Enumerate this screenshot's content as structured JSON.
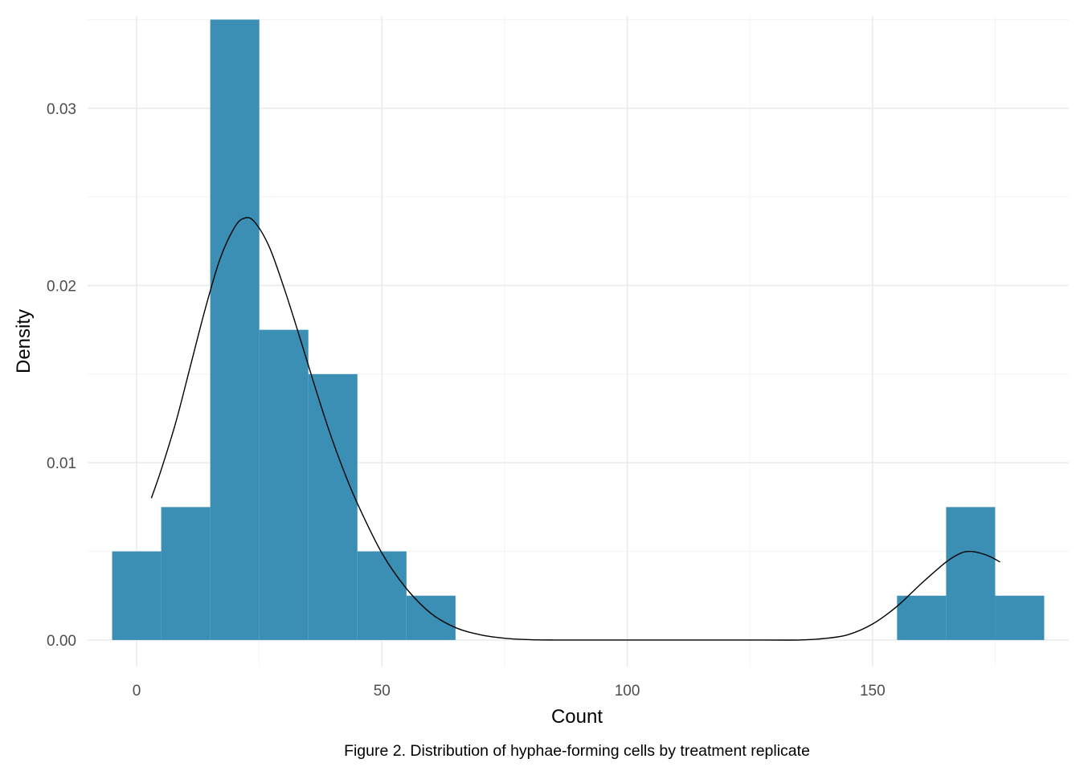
{
  "chart_data": {
    "type": "bar",
    "subtype": "histogram-with-density",
    "xlabel": "Count",
    "ylabel": "Density",
    "caption": "Figure 2. Distribution of hyphae-forming cells by treatment replicate",
    "xlim": [
      -10,
      190
    ],
    "ylim": [
      -0.0015,
      0.0352
    ],
    "x_ticks": [
      0,
      50,
      100,
      150
    ],
    "x_tick_labels": [
      "0",
      "50",
      "100",
      "150"
    ],
    "x_minor_ticks": [
      25,
      75,
      125,
      175
    ],
    "y_ticks": [
      0,
      0.01,
      0.02,
      0.03
    ],
    "y_tick_labels": [
      "0.00",
      "0.01",
      "0.02",
      "0.03"
    ],
    "y_minor_ticks": [
      0.005,
      0.015,
      0.025,
      0.035
    ],
    "grid": true,
    "bin_width": 10,
    "bar_color": "#3b8fb4",
    "line_color": "#000000",
    "bins": [
      {
        "start": -5,
        "end": 5,
        "density": 0.005
      },
      {
        "start": 5,
        "end": 15,
        "density": 0.0075
      },
      {
        "start": 15,
        "end": 25,
        "density": 0.035
      },
      {
        "start": 25,
        "end": 35,
        "density": 0.0175
      },
      {
        "start": 35,
        "end": 45,
        "density": 0.015
      },
      {
        "start": 45,
        "end": 55,
        "density": 0.005
      },
      {
        "start": 55,
        "end": 65,
        "density": 0.0025
      },
      {
        "start": 155,
        "end": 165,
        "density": 0.0025
      },
      {
        "start": 165,
        "end": 175,
        "density": 0.0075
      },
      {
        "start": 175,
        "end": 185,
        "density": 0.0025
      }
    ],
    "density_curve": {
      "x": [
        3,
        5,
        8,
        11,
        14,
        17,
        20,
        22,
        24,
        27,
        30,
        33,
        36,
        39,
        42,
        45,
        50,
        55,
        60,
        65,
        70,
        75,
        80,
        85,
        95,
        105,
        115,
        125,
        135,
        140,
        145,
        150,
        155,
        160,
        165,
        168,
        170,
        172,
        174,
        176
      ],
      "y": [
        0.008,
        0.0096,
        0.0123,
        0.0155,
        0.0187,
        0.0215,
        0.0233,
        0.0238,
        0.0236,
        0.0222,
        0.0199,
        0.0173,
        0.0146,
        0.012,
        0.0097,
        0.0077,
        0.0049,
        0.0029,
        0.0015,
        0.0007,
        0.0003,
        0.0001,
        2e-05,
        0.0,
        0.0,
        0.0,
        0.0,
        0.0,
        0.0,
        8e-05,
        0.0003,
        0.0009,
        0.0019,
        0.0032,
        0.0044,
        0.0049,
        0.005,
        0.0049,
        0.0047,
        0.0044
      ]
    }
  }
}
